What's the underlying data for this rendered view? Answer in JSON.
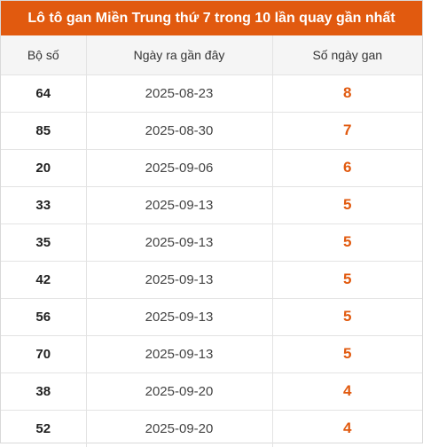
{
  "title": "Lô tô gan Miền Trung thứ 7 trong 10 lần quay gần nhất",
  "headers": [
    "Bộ số",
    "Ngày ra gần đây",
    "Số ngày gan"
  ],
  "rows": [
    {
      "number": "64",
      "date": "2025-08-23",
      "days": "8"
    },
    {
      "number": "85",
      "date": "2025-08-30",
      "days": "7"
    },
    {
      "number": "20",
      "date": "2025-09-06",
      "days": "6"
    },
    {
      "number": "33",
      "date": "2025-09-13",
      "days": "5"
    },
    {
      "number": "35",
      "date": "2025-09-13",
      "days": "5"
    },
    {
      "number": "42",
      "date": "2025-09-13",
      "days": "5"
    },
    {
      "number": "56",
      "date": "2025-09-13",
      "days": "5"
    },
    {
      "number": "70",
      "date": "2025-09-13",
      "days": "5"
    },
    {
      "number": "38",
      "date": "2025-09-20",
      "days": "4"
    },
    {
      "number": "52",
      "date": "2025-09-20",
      "days": "4"
    }
  ],
  "colors": {
    "accent": "#e15a0f",
    "header_bg": "#f5f5f5"
  }
}
